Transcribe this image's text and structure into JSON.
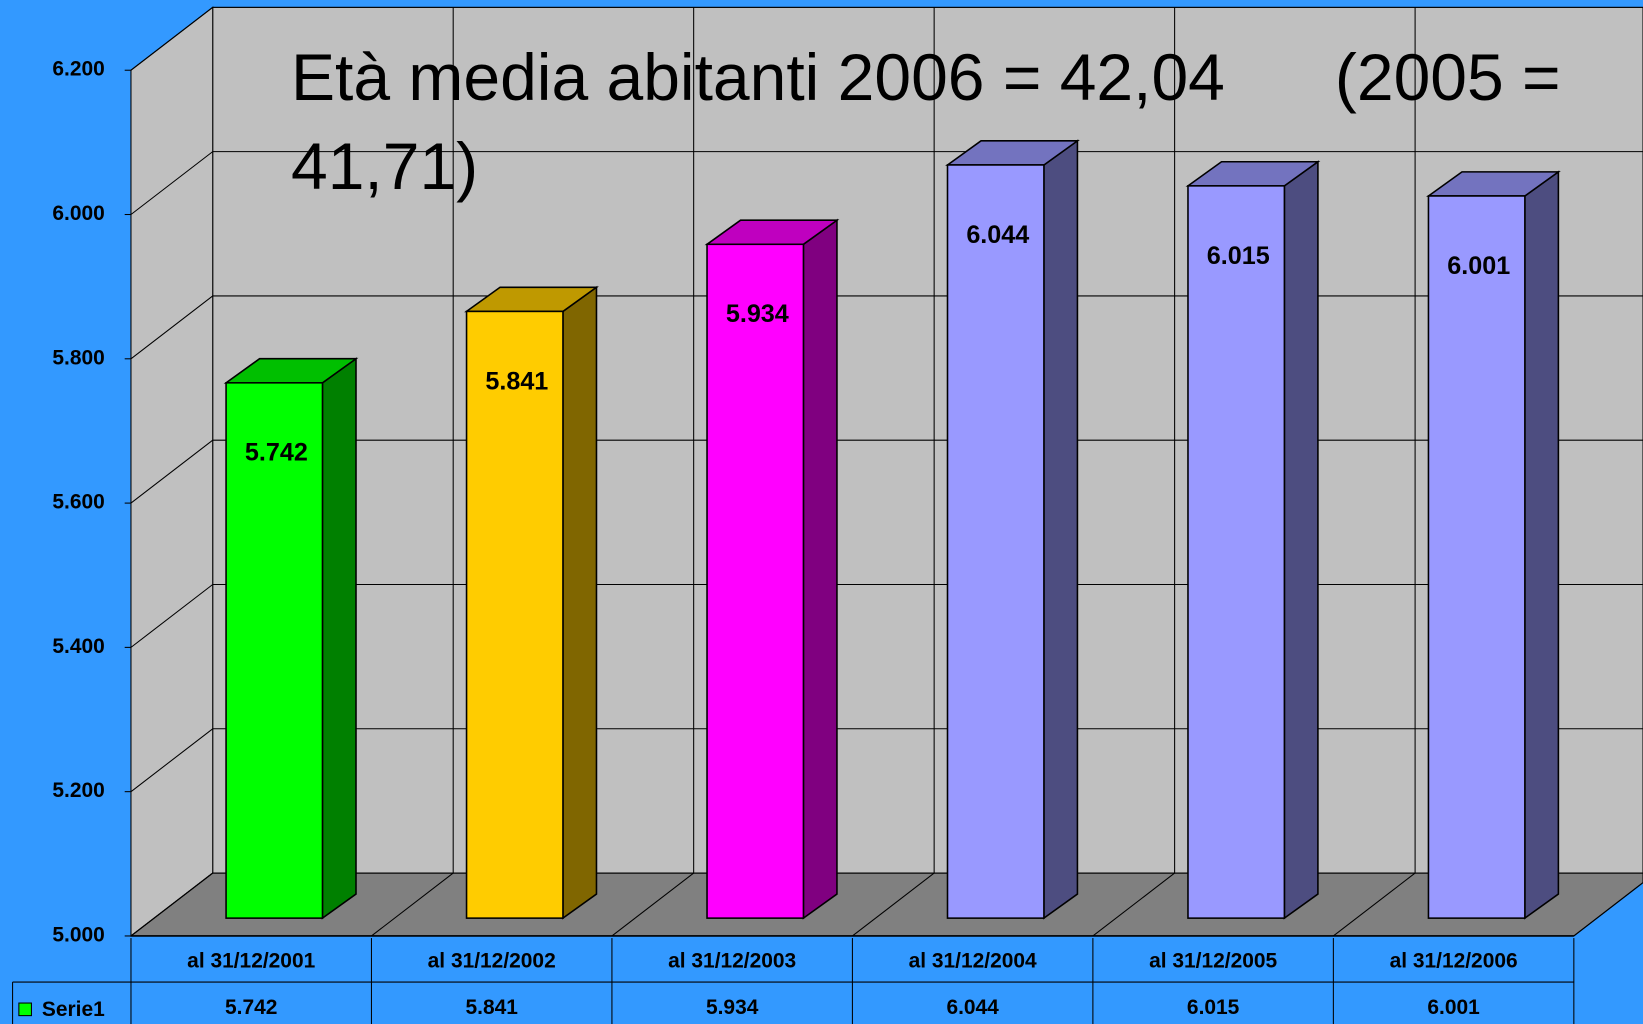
{
  "chart_data": {
    "type": "bar3d",
    "title": "Età media abitanti 2006 = 42,04      (2005 = 41,71)",
    "categories": [
      "al 31/12/2001",
      "al 31/12/2002",
      "al 31/12/2003",
      "al 31/12/2004",
      "al 31/12/2005",
      "al 31/12/2006"
    ],
    "series": [
      {
        "name": "Serie1",
        "color": "#00ff00",
        "colors": [
          "#00ff00",
          "#ffcc00",
          "#ff00ff",
          "#9999ff",
          "#9999ff",
          "#9999ff"
        ],
        "values": [
          5742,
          5841,
          5934,
          6044,
          6015,
          6001
        ],
        "value_labels": [
          "5.742",
          "5.841",
          "5.934",
          "6.044",
          "6.015",
          "6.001"
        ]
      }
    ],
    "ylim": [
      5000,
      6200
    ],
    "yticks": [
      {
        "value": 5000,
        "label": "5.000"
      },
      {
        "value": 5200,
        "label": "5.200"
      },
      {
        "value": 5400,
        "label": "5.400"
      },
      {
        "value": 5600,
        "label": "5.600"
      },
      {
        "value": 5800,
        "label": "5.800"
      },
      {
        "value": 6000,
        "label": "6.000"
      },
      {
        "value": 6200,
        "label": "6.200"
      }
    ],
    "grid": true,
    "data_table": true
  }
}
